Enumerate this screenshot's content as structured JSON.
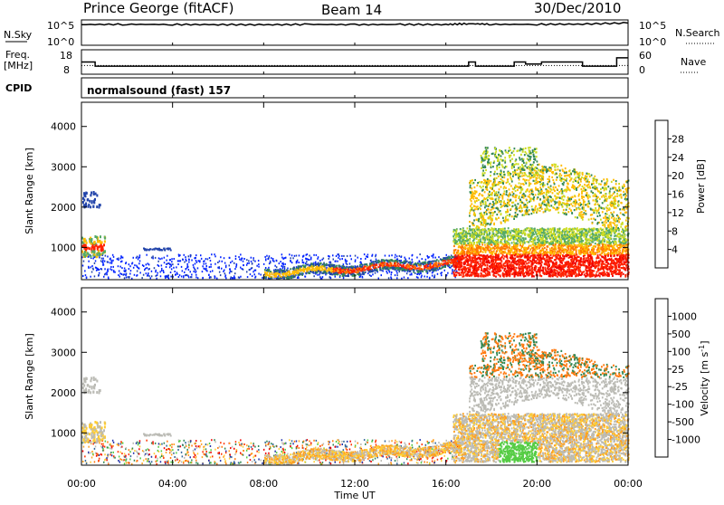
{
  "header": {
    "station": "Prince George (fitACF)",
    "beam": "Beam 14",
    "date": "30/Dec/2010"
  },
  "strip_labels": {
    "nsky": "N.Sky",
    "nsearch": "N.Search",
    "freq_top": "Freq.",
    "freq_unit": "[MHz]",
    "nave": "Nave",
    "cpid": "CPID",
    "cpid_value": "normalsound (fast) 157",
    "nsky_tick_hi": "10^5",
    "nsky_tick_lo": "10^0",
    "freq_tick_hi": "18",
    "freq_tick_lo": "8",
    "nave_tick_hi": "60",
    "nave_tick_lo": "0"
  },
  "colors": {
    "power": [
      "#0022ff",
      "#2244aa",
      "#338855",
      "#55aa66",
      "#ccdd22",
      "#ffbb00",
      "#ff7700",
      "#ff2200",
      "#ee0000"
    ],
    "velocity": [
      "#2233aa",
      "#336699",
      "#338855",
      "#55cc44",
      "#bbbbb5",
      "#ffcc33",
      "#ffa020",
      "#ff7a10",
      "#ff3300",
      "#ee0000"
    ]
  },
  "chart_data": [
    {
      "type": "line",
      "title": "N.Sky / N.Search",
      "x_ticks": [
        "00:00",
        "04:00",
        "08:00",
        "12:00",
        "16:00",
        "20:00",
        "00:00"
      ],
      "ylim": [
        "10^0",
        "10^5"
      ],
      "series": [
        {
          "name": "N.Sky",
          "x": [
            0,
            2,
            4,
            6,
            8,
            10,
            12,
            14,
            16,
            17,
            18,
            20,
            22,
            24
          ],
          "values": [
            22000.0,
            25000.0,
            23000.0,
            22000.0,
            20000.0,
            24000.0,
            21000.0,
            23000.0,
            22000.0,
            35000.0,
            25000.0,
            24000.0,
            28000.0,
            50000.0
          ]
        }
      ]
    },
    {
      "type": "line",
      "title": "Freq. / Nave",
      "x_ticks": [
        "00:00",
        "04:00",
        "08:00",
        "12:00",
        "16:00",
        "20:00",
        "00:00"
      ],
      "ylim_left": [
        8,
        18
      ],
      "ylim_right": [
        0,
        60
      ],
      "series": [
        {
          "name": "Freq.",
          "x": [
            0,
            0.4,
            0.6,
            7.5,
            9,
            10,
            16.5,
            17,
            17.3,
            18.5,
            19,
            19.5,
            20.2,
            21.5,
            22,
            23.5,
            24
          ],
          "values": [
            13,
            13,
            11,
            11,
            11,
            11,
            11,
            13,
            11,
            11,
            13,
            12,
            13,
            13,
            11,
            15,
            15
          ]
        },
        {
          "name": "Nave",
          "x": [
            0,
            24
          ],
          "values": [
            20,
            20
          ]
        }
      ]
    },
    {
      "type": "heatmap",
      "title": "Power [dB]",
      "xlabel": "Time UT",
      "ylabel": "Slant Range [km]",
      "x_ticks": [
        "00:00",
        "04:00",
        "08:00",
        "12:00",
        "16:00",
        "20:00",
        "00:00"
      ],
      "y_ticks": [
        1000,
        2000,
        3000,
        4000
      ],
      "ylim": [
        200,
        4600
      ],
      "colorbar": {
        "label": "Power [dB]",
        "ticks": [
          4,
          8,
          12,
          16,
          20,
          24,
          28
        ]
      }
    },
    {
      "type": "heatmap",
      "title": "Velocity [m s-1]",
      "xlabel": "Time UT",
      "ylabel": "Slant Range [km]",
      "x_ticks": [
        "00:00",
        "04:00",
        "08:00",
        "12:00",
        "16:00",
        "20:00",
        "00:00"
      ],
      "y_ticks": [
        1000,
        2000,
        3000,
        4000
      ],
      "ylim": [
        200,
        4600
      ],
      "colorbar": {
        "label": "Velocity [m s-1]",
        "ticks": [
          1000,
          500,
          100,
          25,
          -25,
          -100,
          -500,
          -1000
        ]
      }
    }
  ],
  "axis": {
    "xlabel": "Time UT",
    "ylabel": "Slant Range [km]",
    "x_ticks": [
      "00:00",
      "04:00",
      "08:00",
      "12:00",
      "16:00",
      "20:00",
      "00:00"
    ],
    "y_ticks": [
      "1000",
      "2000",
      "3000",
      "4000"
    ]
  },
  "power_colorbar": {
    "label": "Power [dB]",
    "ticks": [
      "28",
      "24",
      "20",
      "16",
      "12",
      "8",
      "4"
    ]
  },
  "velocity_colorbar": {
    "label": "Velocity [m s",
    "unit_sup": "-1",
    "label_end": "]",
    "ticks": [
      "1000",
      "500",
      "100",
      "25",
      "-25",
      "-100",
      "-500",
      "-1000"
    ]
  }
}
